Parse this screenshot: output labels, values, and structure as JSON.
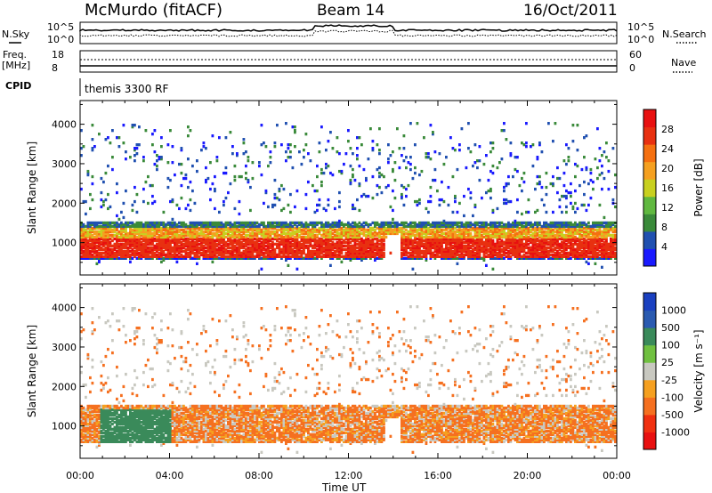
{
  "header": {
    "station": "McMurdo (fitACF)",
    "beam": "Beam 14",
    "date": "16/Oct/2011",
    "cpid_label": "CPID",
    "program": "themis 3300 RF"
  },
  "top_panels": {
    "nsky_label": "N.Sky",
    "nsearch_label": "N.Search",
    "noise_ticks": [
      "10^5",
      "10^0"
    ],
    "freq_label": "Freq.",
    "freq_unit": "[MHz]",
    "freq_ticks": [
      "18",
      "8"
    ],
    "nave_label": "Nave",
    "nave_ticks": [
      "60",
      "0"
    ]
  },
  "axes": {
    "ylabel": "Slant Range [km]",
    "yticks": [
      "4000",
      "3000",
      "2000",
      "1000"
    ],
    "xticks": [
      "00:00",
      "04:00",
      "08:00",
      "12:00",
      "16:00",
      "20:00",
      "00:00"
    ],
    "xlabel": "Time UT"
  },
  "colorbars": {
    "power": {
      "label": "Power [dB]",
      "ticks": [
        "28",
        "24",
        "20",
        "16",
        "12",
        "8",
        "4"
      ]
    },
    "velocity": {
      "label": "Velocity [m s⁻¹]",
      "ticks": [
        "1000",
        "500",
        "100",
        "25",
        "-25",
        "-100",
        "-500",
        "-1000"
      ]
    }
  },
  "colors": {
    "power_scale": [
      "#1a1aff",
      "#2050b0",
      "#3a8a3a",
      "#60b840",
      "#c8d020",
      "#f5a020",
      "#f57010",
      "#e83010",
      "#e81010"
    ],
    "velocity_scale": [
      "#e81010",
      "#f03010",
      "#f57020",
      "#f5a020",
      "#c8c8c0",
      "#70c040",
      "#3a8a5a",
      "#2a5ab0",
      "#1a40c0"
    ]
  },
  "chart_data": [
    {
      "type": "heatmap",
      "title": "Power",
      "xlabel": "Time UT",
      "ylabel": "Slant Range [km]",
      "xlim": [
        "00:00",
        "24:00"
      ],
      "ylim": [
        180,
        4600
      ],
      "colorbar_range_dB": [
        0,
        30
      ],
      "features": [
        {
          "name": "main band",
          "time": [
            "00:00",
            "24:00"
          ],
          "range_km": [
            600,
            1500
          ],
          "peak_dB": 28
        },
        {
          "name": "upper scatter",
          "time": [
            "00:00",
            "24:00"
          ],
          "range_km": [
            1800,
            3500
          ],
          "typical_dB": 8
        }
      ]
    },
    {
      "type": "heatmap",
      "title": "Velocity",
      "xlabel": "Time UT",
      "ylabel": "Slant Range [km]",
      "xlim": [
        "00:00",
        "24:00"
      ],
      "ylim": [
        180,
        4600
      ],
      "colorbar_range_ms": [
        -1000,
        1000
      ],
      "features": [
        {
          "name": "main band",
          "time": [
            "00:00",
            "24:00"
          ],
          "range_km": [
            500,
            1500
          ],
          "typical_ms": -100
        },
        {
          "name": "positive patch",
          "time": [
            "01:00",
            "04:00"
          ],
          "range_km": [
            500,
            1500
          ],
          "typical_ms": 100
        }
      ]
    }
  ]
}
